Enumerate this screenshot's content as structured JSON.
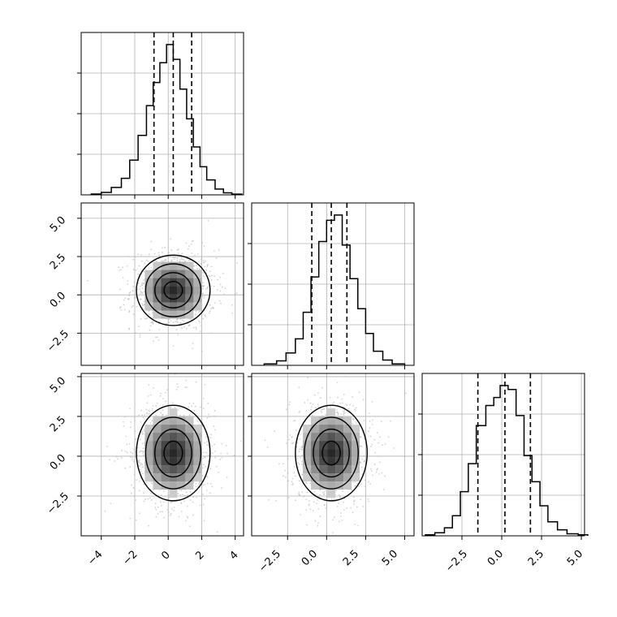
{
  "colors": {
    "background": "#ffffff",
    "axes_frame": "#000000",
    "grid": "#b0b0b0",
    "histogram": "#000000",
    "quantile_lines": "#000000",
    "scatter_points": "#bdbdbd",
    "density_max": "#1a1a1a"
  },
  "chart_data": [
    {
      "type": "histogram",
      "panel": "diag-0",
      "variable_index": 0,
      "bins": [
        -4.6,
        -4.0,
        -3.4,
        -2.8,
        -2.3,
        -1.8,
        -1.3,
        -0.9,
        -0.5,
        -0.1,
        0.3,
        0.7,
        1.1,
        1.5,
        1.9,
        2.3,
        2.8,
        3.3,
        3.8,
        4.4
      ],
      "counts": [
        0.05,
        0.15,
        0.45,
        1.0,
        2.1,
        3.6,
        5.4,
        6.8,
        8.0,
        9.1,
        8.2,
        6.4,
        4.6,
        2.9,
        1.7,
        0.9,
        0.35,
        0.12,
        0.04
      ],
      "quantiles": [
        -0.85,
        0.3,
        1.4
      ],
      "xlim": [
        -5.2,
        4.5
      ],
      "grid": true
    },
    {
      "type": "histogram",
      "panel": "diag-1",
      "variable_index": 1,
      "bins": [
        -4.0,
        -3.2,
        -2.6,
        -2.0,
        -1.5,
        -1.0,
        -0.5,
        0.0,
        0.5,
        1.0,
        1.5,
        2.0,
        2.5,
        3.0,
        3.6,
        4.2,
        5.0
      ],
      "counts": [
        0.08,
        0.25,
        0.7,
        1.5,
        3.0,
        5.0,
        7.0,
        8.2,
        8.5,
        6.8,
        4.9,
        3.2,
        1.8,
        0.8,
        0.3,
        0.08
      ],
      "quantiles": [
        -0.95,
        0.3,
        1.3
      ],
      "xlim": [
        -4.8,
        5.6
      ],
      "grid": true
    },
    {
      "type": "histogram",
      "panel": "diag-2",
      "variable_index": 2,
      "bins": [
        -4.8,
        -4.2,
        -3.6,
        -3.1,
        -2.6,
        -2.1,
        -1.6,
        -1.0,
        -0.5,
        -0.1,
        0.4,
        0.9,
        1.4,
        1.9,
        2.4,
        2.9,
        3.5,
        4.1,
        4.8,
        5.4
      ],
      "counts": [
        0.05,
        0.15,
        0.4,
        1.0,
        2.2,
        3.6,
        5.5,
        6.5,
        6.9,
        7.5,
        7.3,
        6.0,
        4.0,
        2.7,
        1.5,
        0.7,
        0.3,
        0.1,
        0.05
      ],
      "quantiles": [
        -1.5,
        0.2,
        1.8
      ],
      "xlim": [
        -5.0,
        5.2
      ],
      "grid": true
    },
    {
      "type": "scatter",
      "panel": "lower-1-0",
      "x_variable": 0,
      "y_variable": 1,
      "mean": [
        0.3,
        0.3
      ],
      "std": [
        1.1,
        1.15
      ],
      "xlim": [
        -5.2,
        4.5
      ],
      "ylim": [
        -4.6,
        6.0
      ],
      "contours": true,
      "grid": true
    },
    {
      "type": "scatter",
      "panel": "lower-2-0",
      "x_variable": 0,
      "y_variable": 2,
      "mean": [
        0.3,
        0.2
      ],
      "std": [
        1.1,
        1.5
      ],
      "xlim": [
        -5.2,
        4.5
      ],
      "ylim": [
        -5.0,
        5.2
      ],
      "contours": true,
      "grid": true
    },
    {
      "type": "scatter",
      "panel": "lower-2-1",
      "x_variable": 1,
      "y_variable": 2,
      "mean": [
        0.3,
        0.2
      ],
      "std": [
        1.15,
        1.5
      ],
      "xlim": [
        -4.8,
        5.6
      ],
      "ylim": [
        -5.0,
        5.2
      ],
      "contours": true,
      "grid": true
    }
  ],
  "axis_ticks": {
    "y_row1": [
      "5.0",
      "2.5",
      "0.0",
      "−2.5"
    ],
    "y_row2": [
      "5.0",
      "2.5",
      "0.0",
      "−2.5"
    ],
    "x_col0": [
      "−4",
      "−2",
      "0",
      "2",
      "4"
    ],
    "x_col1": [
      "−2.5",
      "0.0",
      "2.5",
      "5.0"
    ],
    "x_col2": [
      "−2.5",
      "0.0",
      "2.5",
      "5.0"
    ]
  }
}
